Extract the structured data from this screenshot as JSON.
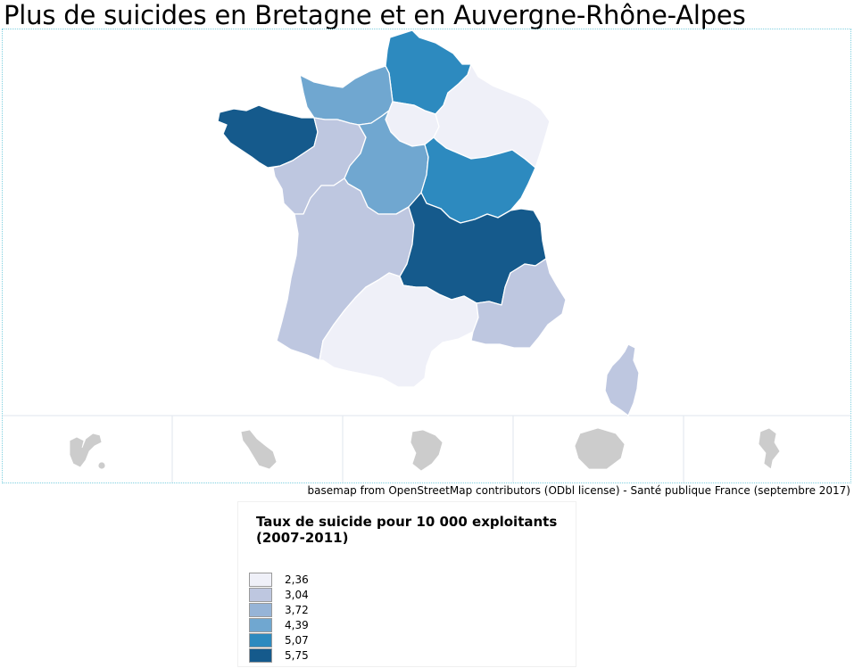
{
  "title": "Plus de suicides en Bretagne et en Auvergne-Rhône-Alpes",
  "source": "basemap from OpenStreetMap contributors (ODbl license) - Santé publique France (septembre 2017)",
  "legend": {
    "title": "Taux de suicide pour 10 000 exploitants (2007-2011)",
    "items": [
      {
        "label": "2,36",
        "color": "#eff0f8"
      },
      {
        "label": "3,04",
        "color": "#bec7e0"
      },
      {
        "label": "3,72",
        "color": "#96b4d7"
      },
      {
        "label": "4,39",
        "color": "#70a7d0"
      },
      {
        "label": "5,07",
        "color": "#2d8abf"
      },
      {
        "label": "5,75",
        "color": "#155a8c"
      }
    ]
  },
  "map": {
    "regions": [
      {
        "name": "Hauts-de-France",
        "class": 5
      },
      {
        "name": "Normandie",
        "class": 4
      },
      {
        "name": "Île-de-France",
        "class": 1
      },
      {
        "name": "Grand Est",
        "class": 1
      },
      {
        "name": "Bretagne",
        "class": 6
      },
      {
        "name": "Pays de la Loire",
        "class": 2
      },
      {
        "name": "Centre-Val de Loire",
        "class": 4
      },
      {
        "name": "Bourgogne-Franche-Comté",
        "class": 5
      },
      {
        "name": "Nouvelle-Aquitaine",
        "class": 2
      },
      {
        "name": "Auvergne-Rhône-Alpes",
        "class": 6
      },
      {
        "name": "Occitanie",
        "class": 1
      },
      {
        "name": "Provence-Alpes-Côte d'Azur",
        "class": 2
      },
      {
        "name": "Corse",
        "class": 2
      }
    ],
    "nodata_color": "#cccccc",
    "overseas": [
      "Guadeloupe",
      "Martinique",
      "Guyane",
      "La Réunion",
      "Mayotte"
    ]
  }
}
